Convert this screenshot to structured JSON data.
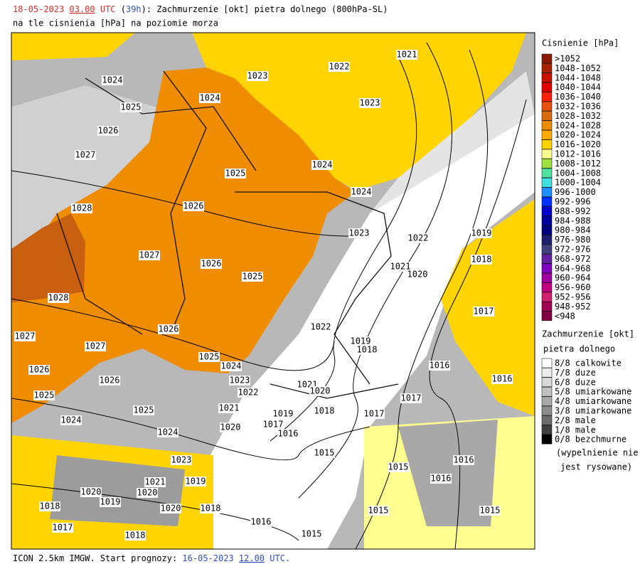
{
  "header": {
    "date": "18-05-2023",
    "time": "03.00",
    "utc": "UTC",
    "lead": "39h",
    "title": "Zachmurzenie [okt] pietra dolnego (800hPa-SL)",
    "subtitle": "na tle cisnienia [hPa] na poziomie morza"
  },
  "footer": {
    "model": "ICON 2.5km IMGW. Start prognozy:",
    "date": "16-05-2023",
    "time": "12.00",
    "utc": "UTC."
  },
  "pressure_legend": {
    "title": "Cisnienie [hPa]",
    "items": [
      {
        "label": ">1052",
        "color": "#8b1a00"
      },
      {
        "label": "1048-1052",
        "color": "#a82000"
      },
      {
        "label": "1044-1048",
        "color": "#c81000"
      },
      {
        "label": "1040-1044",
        "color": "#e00000"
      },
      {
        "label": "1036-1040",
        "color": "#ff2000"
      },
      {
        "label": "1032-1036",
        "color": "#e85010"
      },
      {
        "label": "1028-1032",
        "color": "#d86a10"
      },
      {
        "label": "1024-1028",
        "color": "#f08c00"
      },
      {
        "label": "1020-1024",
        "color": "#ffaa00"
      },
      {
        "label": "1016-1020",
        "color": "#ffd400"
      },
      {
        "label": "1012-1016",
        "color": "#ffff90"
      },
      {
        "label": "1008-1012",
        "color": "#a0e040"
      },
      {
        "label": "1004-1008",
        "color": "#50e0a0"
      },
      {
        "label": "1000-1004",
        "color": "#40e0e0"
      },
      {
        "label": "996-1000",
        "color": "#2090ff"
      },
      {
        "label": "992-996",
        "color": "#0030ff"
      },
      {
        "label": "988-992",
        "color": "#0000d0"
      },
      {
        "label": "984-988",
        "color": "#0000a0"
      },
      {
        "label": "980-984",
        "color": "#000080"
      },
      {
        "label": "976-980",
        "color": "#202070"
      },
      {
        "label": "972-976",
        "color": "#404080"
      },
      {
        "label": "968-972",
        "color": "#6020a0"
      },
      {
        "label": "964-968",
        "color": "#8000c0"
      },
      {
        "label": "960-964",
        "color": "#a000a0"
      },
      {
        "label": "956-960",
        "color": "#c00080"
      },
      {
        "label": "952-956",
        "color": "#d02070"
      },
      {
        "label": "948-952",
        "color": "#a00050"
      },
      {
        "label": "<948",
        "color": "#800040"
      }
    ]
  },
  "cloud_legend": {
    "title": "Zachmurzenie [okt]",
    "subtitle": "pietra dolnego",
    "items": [
      {
        "label": "8/8 calkowite",
        "color": "#ffffff"
      },
      {
        "label": "7/8 duze",
        "color": "#ececec"
      },
      {
        "label": "6/8 duze",
        "color": "#d8d8d8"
      },
      {
        "label": "5/8 umiarkowane",
        "color": "#c0c0c0"
      },
      {
        "label": "4/8 umiarkowane",
        "color": "#a8a8a8"
      },
      {
        "label": "3/8 umiarkowane",
        "color": "#8c8c8c"
      },
      {
        "label": "2/8 male",
        "color": "#6c6c6c"
      },
      {
        "label": "1/8 male",
        "color": "#404040"
      },
      {
        "label": "0/8 bezchmurne",
        "color": "#000000"
      }
    ],
    "note_1": "(wypelnienie nie",
    "note_2": "jest rysowane)"
  },
  "map": {
    "isobar_labels": [
      "1021",
      "1023",
      "1022",
      "1024",
      "1024",
      "1023",
      "1025",
      "1026",
      "1027",
      "1025",
      "1024",
      "1024",
      "1026",
      "1028",
      "1023",
      "1022",
      "1019",
      "1027",
      "1026",
      "1025",
      "1021",
      "1020",
      "1018",
      "1028",
      "1017",
      "1022",
      "1026",
      "1027",
      "1019",
      "1018",
      "1027",
      "1025",
      "1024",
      "1026",
      "1016",
      "1016",
      "1023",
      "1026",
      "1021",
      "1020",
      "1022",
      "1025",
      "1017",
      "1021",
      "1025",
      "1019",
      "1018",
      "1017",
      "1024",
      "1017",
      "1020",
      "1016",
      "1024",
      "1015",
      "1023",
      "1016",
      "1015",
      "1021",
      "1019",
      "1016",
      "1020",
      "1020",
      "1019",
      "1018",
      "1020",
      "1018",
      "1015",
      "1015",
      "1017",
      "1016",
      "1015",
      "1018"
    ]
  }
}
